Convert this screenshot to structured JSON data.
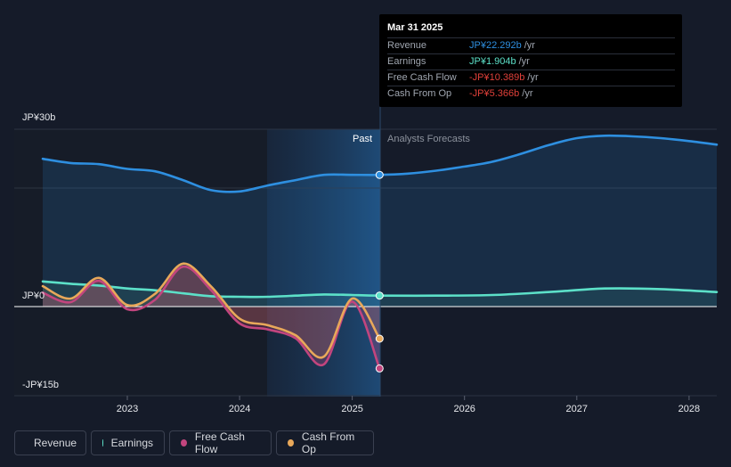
{
  "chart_data": {
    "type": "line",
    "x_ticks": [
      "2023",
      "2024",
      "2025",
      "2026",
      "2027",
      "2028"
    ],
    "y_ticks": [
      "JP¥30b",
      "JP¥0",
      "-JP¥15b"
    ],
    "ylim": [
      -15,
      30
    ],
    "y_unit": "JP¥ billions",
    "past_label": "Past",
    "forecast_label": "Analysts Forecasts",
    "series": [
      {
        "name": "Revenue",
        "color": "#2e8fe0",
        "points": [
          [
            "2022-04-01",
            25.0
          ],
          [
            "2022-07-01",
            24.3
          ],
          [
            "2022-10-01",
            24.1
          ],
          [
            "2023-01-01",
            23.3
          ],
          [
            "2023-04-01",
            22.9
          ],
          [
            "2023-07-01",
            21.4
          ],
          [
            "2023-10-01",
            19.7
          ],
          [
            "2024-01-01",
            19.5
          ],
          [
            "2024-04-01",
            20.5
          ],
          [
            "2024-07-01",
            21.4
          ],
          [
            "2024-10-01",
            22.3
          ],
          [
            "2025-01-01",
            22.3
          ],
          [
            "2025-03-31",
            22.292
          ],
          [
            "2025-07-01",
            22.5
          ],
          [
            "2025-10-01",
            23.0
          ],
          [
            "2026-01-01",
            23.7
          ],
          [
            "2026-04-01",
            24.5
          ],
          [
            "2026-07-01",
            25.8
          ],
          [
            "2026-10-01",
            27.3
          ],
          [
            "2027-01-01",
            28.5
          ],
          [
            "2027-04-01",
            28.9
          ],
          [
            "2027-07-01",
            28.8
          ],
          [
            "2027-10-01",
            28.5
          ],
          [
            "2028-01-01",
            28.0
          ],
          [
            "2028-03-31",
            27.4
          ]
        ]
      },
      {
        "name": "Earnings",
        "color": "#5ce0c8",
        "points": [
          [
            "2022-04-01",
            4.3
          ],
          [
            "2022-07-01",
            3.9
          ],
          [
            "2022-10-01",
            3.6
          ],
          [
            "2023-01-01",
            3.1
          ],
          [
            "2023-04-01",
            2.8
          ],
          [
            "2023-07-01",
            2.3
          ],
          [
            "2023-10-01",
            1.8
          ],
          [
            "2024-01-01",
            1.7
          ],
          [
            "2024-04-01",
            1.7
          ],
          [
            "2024-07-01",
            1.9
          ],
          [
            "2024-10-01",
            2.1
          ],
          [
            "2025-01-01",
            2.0
          ],
          [
            "2025-03-31",
            1.904
          ],
          [
            "2025-10-01",
            1.9
          ],
          [
            "2026-04-01",
            2.0
          ],
          [
            "2026-10-01",
            2.5
          ],
          [
            "2027-04-01",
            3.1
          ],
          [
            "2027-10-01",
            3.0
          ],
          [
            "2028-03-31",
            2.5
          ]
        ]
      },
      {
        "name": "Free Cash Flow",
        "color": "#c2457e",
        "points": [
          [
            "2022-04-01",
            2.4
          ],
          [
            "2022-07-01",
            0.8
          ],
          [
            "2022-10-01",
            4.4
          ],
          [
            "2023-01-01",
            -0.4
          ],
          [
            "2023-04-01",
            1.2
          ],
          [
            "2023-07-01",
            6.8
          ],
          [
            "2023-10-01",
            2.8
          ],
          [
            "2024-01-01",
            -2.8
          ],
          [
            "2024-04-01",
            -3.8
          ],
          [
            "2024-07-01",
            -5.3
          ],
          [
            "2024-10-01",
            -9.7
          ],
          [
            "2025-01-01",
            0.9
          ],
          [
            "2025-03-31",
            -10.389
          ]
        ]
      },
      {
        "name": "Cash From Op",
        "color": "#e8a85a",
        "points": [
          [
            "2022-04-01",
            3.5
          ],
          [
            "2022-07-01",
            1.4
          ],
          [
            "2022-10-01",
            4.9
          ],
          [
            "2023-01-01",
            0.3
          ],
          [
            "2023-04-01",
            2.2
          ],
          [
            "2023-07-01",
            7.3
          ],
          [
            "2023-10-01",
            3.4
          ],
          [
            "2024-01-01",
            -2.0
          ],
          [
            "2024-04-01",
            -3.1
          ],
          [
            "2024-07-01",
            -4.8
          ],
          [
            "2024-10-01",
            -8.4
          ],
          [
            "2025-01-01",
            1.4
          ],
          [
            "2025-03-31",
            -5.366
          ]
        ]
      }
    ]
  },
  "tooltip": {
    "date": "Mar 31 2025",
    "unit": "/yr",
    "rows": [
      {
        "name": "Revenue",
        "value": "JP¥22.292b",
        "color": "#2e8fe0"
      },
      {
        "name": "Earnings",
        "value": "JP¥1.904b",
        "color": "#5ce0c8"
      },
      {
        "name": "Free Cash Flow",
        "value": "-JP¥10.389b",
        "color": "#e0403a"
      },
      {
        "name": "Cash From Op",
        "value": "-JP¥5.366b",
        "color": "#e0403a"
      }
    ]
  },
  "legend": [
    {
      "label": "Revenue",
      "color": "#2e8fe0"
    },
    {
      "label": "Earnings",
      "color": "#5ce0c8"
    },
    {
      "label": "Free Cash Flow",
      "color": "#c2457e"
    },
    {
      "label": "Cash From Op",
      "color": "#e8a85a"
    }
  ]
}
